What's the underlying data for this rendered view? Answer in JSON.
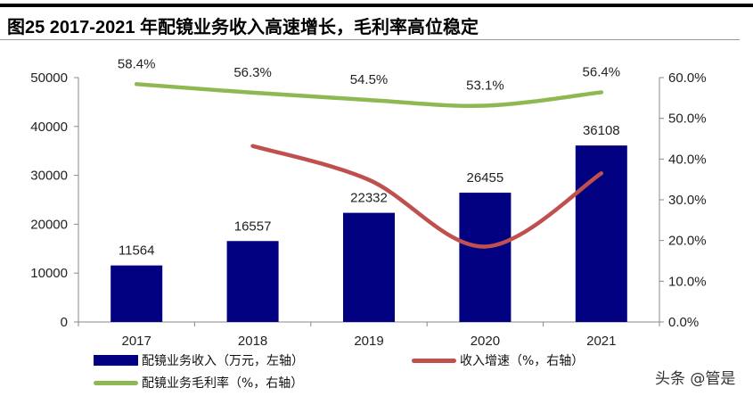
{
  "title": "图25 2017-2021 年配镜业务收入高速增长，毛利率高位稳定",
  "watermark": "头条 @管是",
  "chart_data": {
    "type": "bar+line",
    "categories": [
      "2017",
      "2018",
      "2019",
      "2020",
      "2021"
    ],
    "series": [
      {
        "name": "配镜业务收入（万元，左轴）",
        "type": "bar",
        "axis": "left",
        "color": "#000080",
        "values": [
          11564,
          16557,
          22332,
          26455,
          36108
        ],
        "labels": [
          "11564",
          "16557",
          "22332",
          "26455",
          "36108"
        ]
      },
      {
        "name": "收入增速（%，右轴）",
        "type": "line",
        "axis": "right",
        "color": "#C0504D",
        "values": [
          null,
          43.2,
          34.9,
          18.5,
          36.5
        ]
      },
      {
        "name": "配镜业务毛利率（%，右轴）",
        "type": "line",
        "axis": "right",
        "color": "#8DB852",
        "values": [
          58.4,
          56.3,
          54.5,
          53.1,
          56.4
        ],
        "labels": [
          "58.4%",
          "56.3%",
          "54.5%",
          "53.1%",
          "56.4%"
        ]
      }
    ],
    "left_axis": {
      "min": 0,
      "max": 50000,
      "ticks": [
        "0",
        "10000",
        "20000",
        "30000",
        "40000",
        "50000"
      ]
    },
    "right_axis": {
      "min": 0,
      "max": 60,
      "ticks": [
        "0.0%",
        "10.0%",
        "20.0%",
        "30.0%",
        "40.0%",
        "50.0%",
        "60.0%"
      ]
    },
    "grid": false,
    "legend_position": "bottom"
  }
}
